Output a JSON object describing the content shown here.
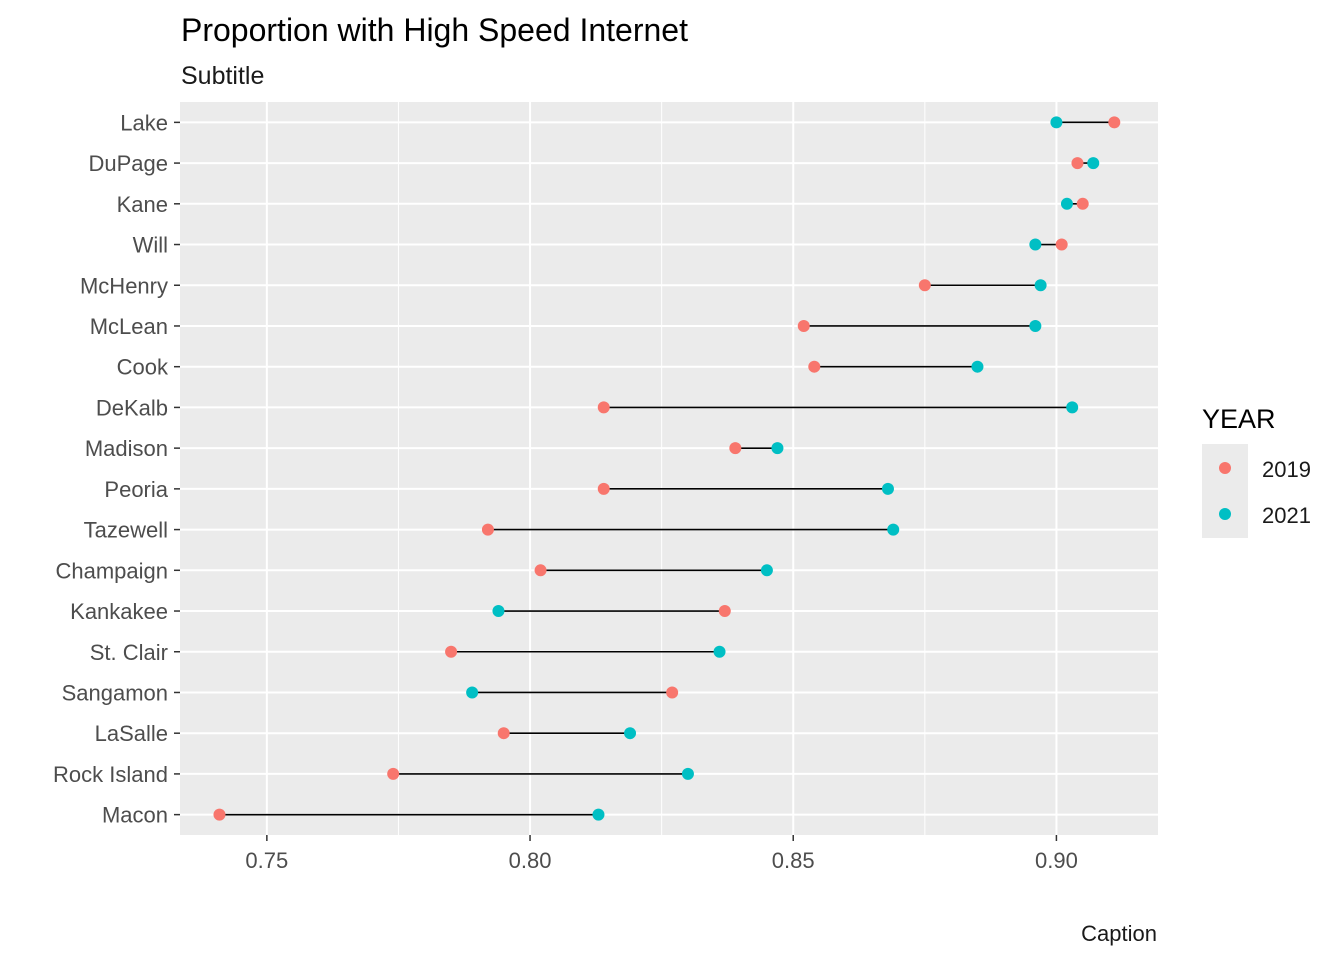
{
  "chart_data": {
    "type": "dumbbell",
    "title": "Proportion with High Speed Internet",
    "subtitle": "Subtitle",
    "caption": "Caption",
    "xlabel": "",
    "ylabel": "",
    "xlim": [
      0.7335,
      0.9193
    ],
    "x_ticks": [
      0.75,
      0.8,
      0.85,
      0.9
    ],
    "x_tick_labels": [
      "0.75",
      "0.80",
      "0.85",
      "0.90"
    ],
    "grid": true,
    "legend": {
      "title": "YEAR",
      "position": "right"
    },
    "series": [
      {
        "name": "2019",
        "color": "#F8766D"
      },
      {
        "name": "2021",
        "color": "#00BFC4"
      }
    ],
    "categories": [
      "Lake",
      "DuPage",
      "Kane",
      "Will",
      "McHenry",
      "McLean",
      "Cook",
      "DeKalb",
      "Madison",
      "Peoria",
      "Tazewell",
      "Champaign",
      "Kankakee",
      "St. Clair",
      "Sangamon",
      "LaSalle",
      "Rock Island",
      "Macon"
    ],
    "values_2019": [
      0.911,
      0.904,
      0.905,
      0.901,
      0.875,
      0.852,
      0.854,
      0.814,
      0.839,
      0.814,
      0.792,
      0.802,
      0.837,
      0.785,
      0.827,
      0.795,
      0.774,
      0.741
    ],
    "values_2021": [
      0.9,
      0.907,
      0.902,
      0.896,
      0.897,
      0.896,
      0.885,
      0.903,
      0.847,
      0.868,
      0.869,
      0.845,
      0.794,
      0.836,
      0.789,
      0.819,
      0.83,
      0.813
    ]
  }
}
